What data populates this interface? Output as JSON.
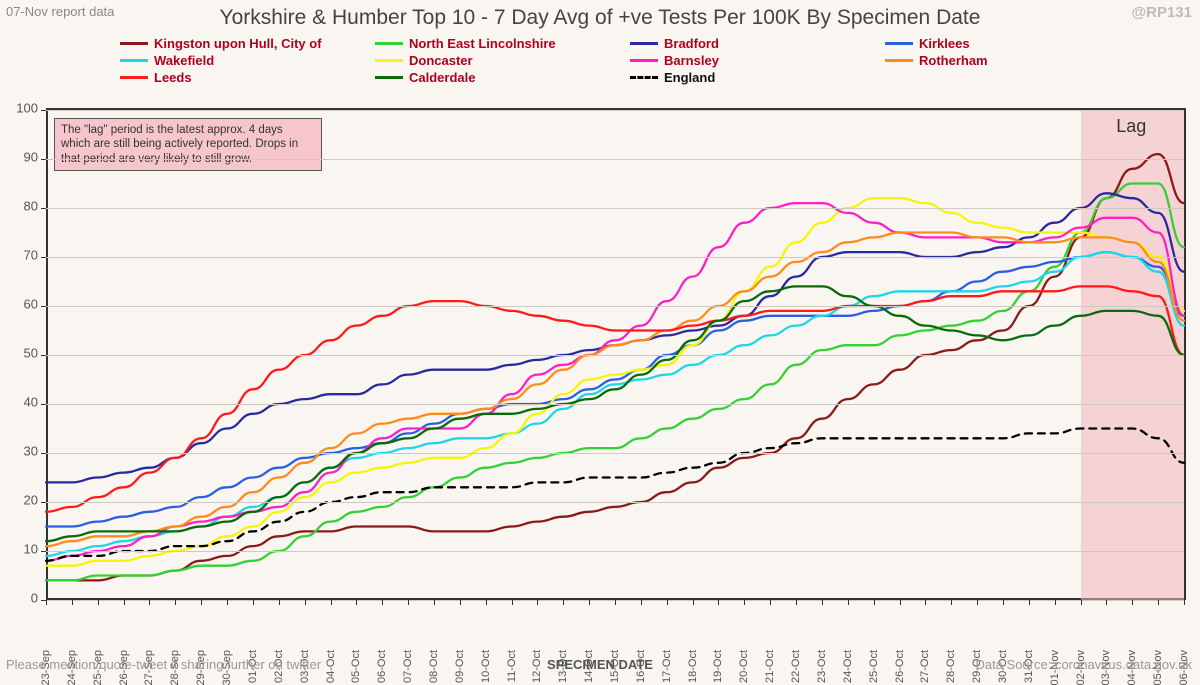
{
  "meta": {
    "report_note": "07-Nov report data",
    "handle": "@RP131",
    "title": "Yorkshire & Humber Top 10 - 7 Day Avg of +ve Tests Per 100K By Specimen Date",
    "x_axis_title": "SPECIMEN DATE",
    "share_note": "Please mention/quote-tweet if sharing further on twitter",
    "source_note": "Data Source: coronavirus.data.gov.uk"
  },
  "annotation": {
    "text": "The \"lag\" period is the latest approx. 4 days which are still being actively reported. Drops in that period are very likely to still grow.",
    "lag_label": "Lag"
  },
  "chart": {
    "background_color": "#f9f6f1",
    "grid_color": "#cfcac0",
    "axis_color": "#333333",
    "lag_fill": "#f3b7bc",
    "ylim": [
      0,
      100
    ],
    "ytick_step": 10,
    "x_categories": [
      "23-Sep",
      "24-Sep",
      "25-Sep",
      "26-Sep",
      "27-Sep",
      "28-Sep",
      "29-Sep",
      "30-Sep",
      "01-Oct",
      "02-Oct",
      "03-Oct",
      "04-Oct",
      "05-Oct",
      "06-Oct",
      "07-Oct",
      "08-Oct",
      "09-Oct",
      "10-Oct",
      "11-Oct",
      "12-Oct",
      "13-Oct",
      "14-Oct",
      "15-Oct",
      "16-Oct",
      "17-Oct",
      "18-Oct",
      "19-Oct",
      "20-Oct",
      "21-Oct",
      "22-Oct",
      "23-Oct",
      "24-Oct",
      "25-Oct",
      "26-Oct",
      "27-Oct",
      "28-Oct",
      "29-Oct",
      "30-Oct",
      "31-Oct",
      "01-Nov",
      "02-Nov",
      "03-Nov",
      "04-Nov",
      "05-Nov",
      "06-Nov"
    ],
    "lag_start_index": 40,
    "line_width": 2.3,
    "series": [
      {
        "name": "Kingston upon Hull, City of",
        "color": "#8b1a1a",
        "dashed": false,
        "label_class": "red",
        "values": [
          4,
          4,
          4,
          5,
          5,
          6,
          8,
          9,
          11,
          13,
          14,
          14,
          15,
          15,
          15,
          14,
          14,
          14,
          15,
          16,
          17,
          18,
          19,
          20,
          22,
          24,
          27,
          29,
          30,
          33,
          37,
          41,
          44,
          47,
          50,
          51,
          53,
          55,
          60,
          66,
          74,
          82,
          88,
          91,
          81
        ]
      },
      {
        "name": "North East Lincolnshire",
        "color": "#33d133",
        "dashed": false,
        "label_class": "red",
        "values": [
          4,
          4,
          5,
          5,
          5,
          6,
          7,
          7,
          8,
          10,
          13,
          16,
          18,
          19,
          21,
          23,
          25,
          27,
          28,
          29,
          30,
          31,
          31,
          33,
          35,
          37,
          39,
          41,
          44,
          48,
          51,
          52,
          52,
          54,
          55,
          56,
          57,
          59,
          63,
          68,
          75,
          82,
          85,
          85,
          72
        ]
      },
      {
        "name": "Bradford",
        "color": "#2a2a9e",
        "dashed": false,
        "label_class": "red",
        "values": [
          24,
          24,
          25,
          26,
          27,
          29,
          32,
          35,
          38,
          40,
          41,
          42,
          42,
          44,
          46,
          47,
          47,
          47,
          48,
          49,
          50,
          51,
          52,
          53,
          54,
          55,
          56,
          58,
          62,
          66,
          70,
          71,
          71,
          71,
          70,
          70,
          71,
          72,
          74,
          77,
          80,
          83,
          82,
          79,
          67
        ]
      },
      {
        "name": "Kirklees",
        "color": "#2c5fe0",
        "dashed": false,
        "label_class": "red",
        "values": [
          15,
          15,
          16,
          17,
          18,
          19,
          21,
          23,
          25,
          27,
          29,
          30,
          31,
          32,
          34,
          36,
          38,
          39,
          40,
          40,
          41,
          43,
          45,
          47,
          50,
          52,
          55,
          57,
          58,
          58,
          58,
          58,
          59,
          60,
          61,
          63,
          65,
          67,
          68,
          69,
          70,
          71,
          70,
          68,
          58
        ]
      },
      {
        "name": "Wakefield",
        "color": "#1fd6e8",
        "dashed": false,
        "label_class": "red",
        "values": [
          9,
          10,
          11,
          12,
          13,
          14,
          15,
          17,
          19,
          21,
          24,
          27,
          29,
          30,
          31,
          32,
          33,
          33,
          34,
          36,
          39,
          42,
          44,
          45,
          46,
          48,
          50,
          52,
          54,
          56,
          58,
          60,
          62,
          63,
          63,
          63,
          63,
          64,
          65,
          67,
          70,
          71,
          70,
          67,
          56
        ]
      },
      {
        "name": "Doncaster",
        "color": "#f5f50a",
        "dashed": false,
        "label_class": "red",
        "values": [
          7,
          7,
          8,
          8,
          9,
          10,
          11,
          13,
          15,
          18,
          21,
          24,
          26,
          27,
          28,
          29,
          29,
          31,
          34,
          38,
          42,
          45,
          46,
          47,
          48,
          52,
          57,
          63,
          68,
          73,
          77,
          80,
          82,
          82,
          81,
          79,
          77,
          76,
          75,
          75,
          75,
          74,
          73,
          70,
          59
        ]
      },
      {
        "name": "Barnsley",
        "color": "#ff1fc7",
        "dashed": false,
        "label_class": "red",
        "values": [
          8,
          9,
          10,
          11,
          13,
          15,
          16,
          17,
          18,
          19,
          22,
          26,
          30,
          33,
          35,
          35,
          35,
          38,
          42,
          46,
          48,
          50,
          53,
          56,
          61,
          66,
          72,
          77,
          80,
          81,
          81,
          79,
          77,
          75,
          74,
          74,
          74,
          73,
          73,
          74,
          76,
          78,
          78,
          75,
          58
        ]
      },
      {
        "name": "Rotherham",
        "color": "#ff8c1a",
        "dashed": false,
        "label_class": "red",
        "values": [
          11,
          12,
          13,
          13,
          14,
          15,
          17,
          19,
          22,
          25,
          28,
          31,
          34,
          36,
          37,
          38,
          38,
          39,
          41,
          44,
          47,
          50,
          52,
          53,
          55,
          57,
          60,
          63,
          66,
          69,
          71,
          73,
          74,
          75,
          75,
          75,
          74,
          74,
          73,
          73,
          74,
          74,
          73,
          69,
          57
        ]
      },
      {
        "name": "Leeds",
        "color": "#ff1a1a",
        "dashed": false,
        "label_class": "red",
        "values": [
          18,
          19,
          21,
          23,
          26,
          29,
          33,
          38,
          43,
          47,
          50,
          53,
          56,
          58,
          60,
          61,
          61,
          60,
          59,
          58,
          57,
          56,
          55,
          55,
          55,
          56,
          57,
          58,
          59,
          59,
          59,
          60,
          60,
          60,
          61,
          62,
          62,
          63,
          63,
          63,
          64,
          64,
          63,
          62,
          50
        ]
      },
      {
        "name": "Calderdale",
        "color": "#0a6b0a",
        "dashed": false,
        "label_class": "red",
        "values": [
          12,
          13,
          14,
          14,
          14,
          14,
          15,
          16,
          18,
          21,
          24,
          27,
          30,
          32,
          33,
          35,
          37,
          38,
          38,
          39,
          40,
          41,
          43,
          46,
          49,
          53,
          57,
          61,
          63,
          64,
          64,
          62,
          60,
          58,
          56,
          55,
          54,
          53,
          54,
          56,
          58,
          59,
          59,
          58,
          50
        ]
      },
      {
        "name": "England",
        "color": "#000000",
        "dashed": true,
        "label_class": "black",
        "values": [
          8,
          9,
          9,
          10,
          10,
          11,
          11,
          12,
          14,
          16,
          18,
          20,
          21,
          22,
          22,
          23,
          23,
          23,
          23,
          24,
          24,
          25,
          25,
          25,
          26,
          27,
          28,
          30,
          31,
          32,
          33,
          33,
          33,
          33,
          33,
          33,
          33,
          33,
          34,
          34,
          35,
          35,
          35,
          33,
          28
        ]
      }
    ]
  }
}
